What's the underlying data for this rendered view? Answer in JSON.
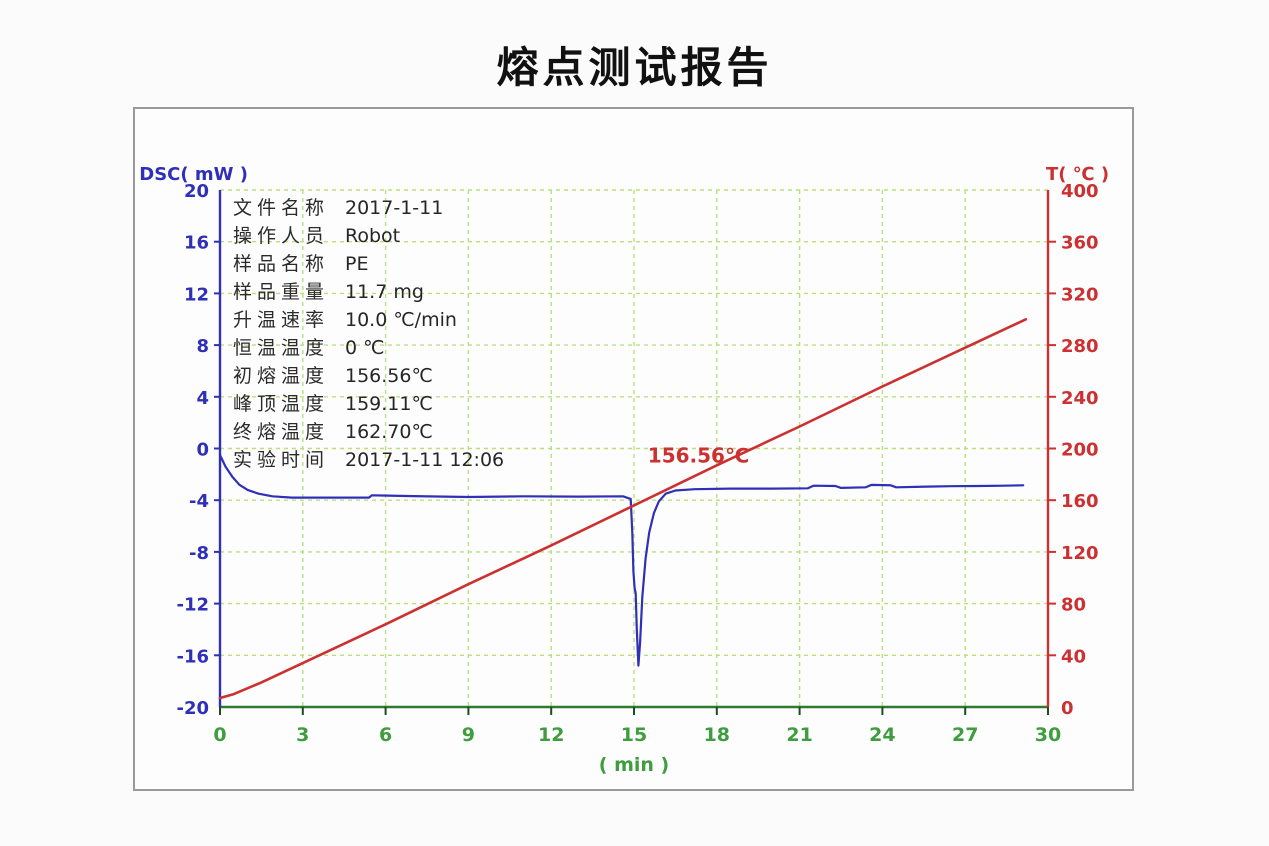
{
  "page": {
    "title": "熔点测试报告"
  },
  "info": {
    "rows": [
      {
        "label": "文件名称",
        "value": "2017-1-11"
      },
      {
        "label": "操作人员",
        "value": "Robot"
      },
      {
        "label": "样品名称",
        "value": "PE"
      },
      {
        "label": "样品重量",
        "value": "11.7 mg"
      },
      {
        "label": "升温速率",
        "value": "10.0 ℃/min"
      },
      {
        "label": "恒温温度",
        "value": "0 ℃"
      },
      {
        "label": "初熔温度",
        "value": "156.56℃"
      },
      {
        "label": "峰顶温度",
        "value": "159.11℃"
      },
      {
        "label": "终熔温度",
        "value": "162.70℃"
      },
      {
        "label": "实验时间",
        "value": "2017-1-11 12:06"
      }
    ]
  },
  "colors": {
    "dsc_blue": "#2f2fb8",
    "temp_red": "#cc3030",
    "axis_green_text": "#3f9c3f",
    "axis_green_line": "#2e7a2e",
    "grid_green": "#b9e07d",
    "frame_gray": "#9a9a9a",
    "info_text": "#2b2b2b",
    "title_black": "#111111"
  },
  "chart_data": {
    "type": "line",
    "title": "熔点测试报告",
    "grid": true,
    "legend": "none",
    "x_axis": {
      "label": "( min )",
      "min": 0,
      "max": 30,
      "ticks": [
        0,
        3,
        6,
        9,
        12,
        15,
        18,
        21,
        24,
        27,
        30
      ],
      "text_color": "#3f9c3f",
      "line_color": "#2e7a2e",
      "tick_color": "#1d4d1d"
    },
    "y_left": {
      "label": "DSC( mW )",
      "min": -20,
      "max": 20,
      "ticks": [
        20,
        16,
        12,
        8,
        4,
        0,
        -4,
        -8,
        -12,
        -16,
        -20
      ],
      "color": "#2f2fb8"
    },
    "y_right": {
      "label": "T( ℃ )",
      "min": 0,
      "max": 400,
      "ticks": [
        400,
        360,
        320,
        280,
        240,
        200,
        160,
        120,
        80,
        40,
        0
      ],
      "color": "#cc3030"
    },
    "annotation": {
      "text": "156.56℃",
      "x_min": 15.5,
      "y_dsc": -1.1,
      "color": "#cc3030"
    },
    "series": [
      {
        "name": "DSC heat flow",
        "axis": "left",
        "color": "#2f2fb8",
        "width": 2.2,
        "points": [
          [
            0,
            -0.5
          ],
          [
            0.2,
            -1.4
          ],
          [
            0.45,
            -2.2
          ],
          [
            0.7,
            -2.8
          ],
          [
            1.0,
            -3.2
          ],
          [
            1.4,
            -3.5
          ],
          [
            1.9,
            -3.7
          ],
          [
            2.6,
            -3.8
          ],
          [
            4.0,
            -3.8
          ],
          [
            5.4,
            -3.8
          ],
          [
            5.5,
            -3.62
          ],
          [
            7.0,
            -3.68
          ],
          [
            9.0,
            -3.75
          ],
          [
            11.0,
            -3.7
          ],
          [
            13.0,
            -3.72
          ],
          [
            14.6,
            -3.7
          ],
          [
            14.88,
            -3.9
          ],
          [
            14.94,
            -6.5
          ],
          [
            14.98,
            -9.5
          ],
          [
            15.02,
            -10.8
          ],
          [
            15.06,
            -11.2
          ],
          [
            15.1,
            -14.0
          ],
          [
            15.16,
            -16.8
          ],
          [
            15.22,
            -15.0
          ],
          [
            15.3,
            -11.5
          ],
          [
            15.42,
            -8.5
          ],
          [
            15.55,
            -6.5
          ],
          [
            15.72,
            -5.0
          ],
          [
            15.9,
            -4.1
          ],
          [
            16.15,
            -3.5
          ],
          [
            16.5,
            -3.25
          ],
          [
            17.2,
            -3.15
          ],
          [
            18.5,
            -3.1
          ],
          [
            20.0,
            -3.1
          ],
          [
            21.3,
            -3.08
          ],
          [
            21.5,
            -2.88
          ],
          [
            22.3,
            -2.9
          ],
          [
            22.5,
            -3.05
          ],
          [
            23.4,
            -3.0
          ],
          [
            23.6,
            -2.82
          ],
          [
            24.3,
            -2.85
          ],
          [
            24.5,
            -3.0
          ],
          [
            25.6,
            -2.95
          ],
          [
            26.5,
            -2.92
          ],
          [
            27.5,
            -2.9
          ],
          [
            28.4,
            -2.88
          ],
          [
            29.1,
            -2.85
          ]
        ]
      },
      {
        "name": "Temperature",
        "axis": "right",
        "color": "#cc3030",
        "width": 2.6,
        "points": [
          [
            0,
            7
          ],
          [
            0.5,
            10
          ],
          [
            1.5,
            19
          ],
          [
            3,
            34
          ],
          [
            6,
            64
          ],
          [
            9,
            95
          ],
          [
            12,
            125
          ],
          [
            15,
            156
          ],
          [
            18,
            187
          ],
          [
            21,
            217
          ],
          [
            24,
            248
          ],
          [
            27,
            278
          ],
          [
            29.2,
            300
          ]
        ]
      }
    ]
  }
}
